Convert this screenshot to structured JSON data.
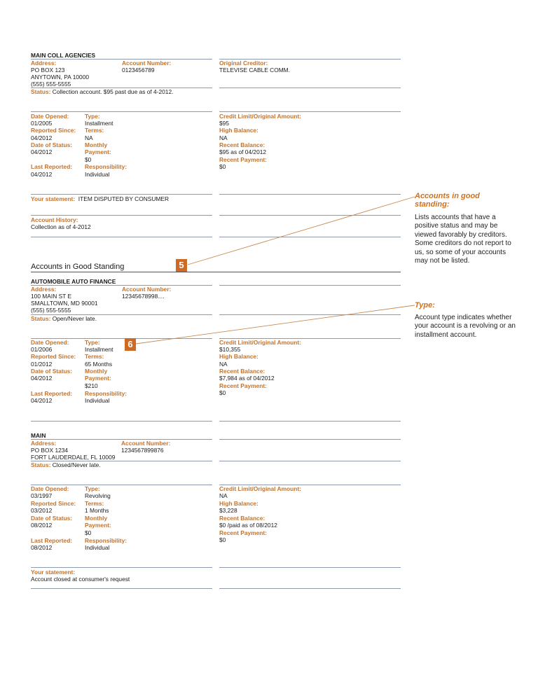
{
  "accounts": [
    {
      "name": "MAIN COLL AGENCIES",
      "address_label": "Address:",
      "address": [
        "PO BOX 123",
        "ANYTOWN, PA  10000",
        "(555) 555-5555"
      ],
      "account_number_label": "Account Number:",
      "account_number": "0123456789",
      "original_creditor_label": "Original Creditor:",
      "original_creditor": "TELEVISE  CABLE COMM.",
      "status_label": "Status:",
      "status": "Collection account. $95 past due as of 4-2012.",
      "date_opened": "01/2005",
      "type": "Installment",
      "reported_since": "04/2012",
      "terms": "NA",
      "date_of_status": "04/2012",
      "monthly_payment": "$0",
      "last_reported": "04/2012",
      "responsibility": "Individual",
      "credit_limit": "$95",
      "high_balance": "NA",
      "recent_balance": "$95 as of 04/2012",
      "recent_payment": "$0",
      "statement_label": "Your statement:",
      "statement": "ITEM DISPUTED BY CONSUMER",
      "history_label": "Account History:",
      "history": "Collection as of 4-2012"
    },
    {
      "name": "AUTOMOBILE AUTO FINANCE",
      "address_label": "Address:",
      "address": [
        "100 MAIN ST E",
        "SMALLTOWN, MD  90001",
        "(555) 555-5555"
      ],
      "account_number_label": "Account Number:",
      "account_number": "12345678998....",
      "status_label": "Status:",
      "status": "Open/Never late.",
      "date_opened": "01/2006",
      "type": "Installment",
      "reported_since": "01/2012",
      "terms": "65 Months",
      "date_of_status": "04/2012",
      "monthly_payment": "$210",
      "last_reported": "04/2012",
      "responsibility": "Individual",
      "credit_limit": "$10,355",
      "high_balance": "NA",
      "recent_balance": "$7,984 as of 04/2012",
      "recent_payment": "$0"
    },
    {
      "name": "MAIN",
      "address_label": "Address:",
      "address": [
        "PO BOX 1234",
        "FORT LAUDERDALE, FL  10009"
      ],
      "account_number_label": "Account Number:",
      "account_number": "1234567899876",
      "status_label": "Status:",
      "status": "Closed/Never late.",
      "date_opened": "03/1997",
      "type": "Revolving",
      "reported_since": "03/2012",
      "terms": "1 Months",
      "date_of_status": "08/2012",
      "monthly_payment": "$0",
      "last_reported": "08/2012",
      "responsibility": "Individual",
      "credit_limit": "NA",
      "high_balance": "$3,228",
      "recent_balance": "$0 /paid as of 08/2012",
      "recent_payment": "$0",
      "statement_label": "Your statement:",
      "statement": "Account closed at consumer's request"
    }
  ],
  "labels": {
    "date_opened": "Date Opened:",
    "type": "Type:",
    "reported_since": "Reported Since:",
    "terms": "Terms:",
    "date_of_status": "Date of Status:",
    "monthly": "Monthly",
    "payment": "Payment:",
    "last_reported": "Last Reported:",
    "responsibility": "Responsibility:",
    "credit_limit": "Credit Limit/Original Amount:",
    "high_balance": "High Balance:",
    "recent_balance": "Recent Balance:",
    "recent_payment": "Recent Payment:"
  },
  "section_title": "Accounts in Good Standing",
  "callouts": [
    {
      "number": "5",
      "heading_1": "Accounts in good",
      "heading_2": "standing:",
      "body": "Lists accounts that have a positive status and may be viewed favorably by creditors.  Some creditors do not report to us, so some of your accounts may not be listed."
    },
    {
      "number": "6",
      "heading_1": "Type:",
      "body": "Account type indicates whether your account is a revolving or an installment account."
    }
  ],
  "colors": {
    "label": "#c4732c",
    "badge": "#cf6a25",
    "rule": "#8d9aab"
  }
}
